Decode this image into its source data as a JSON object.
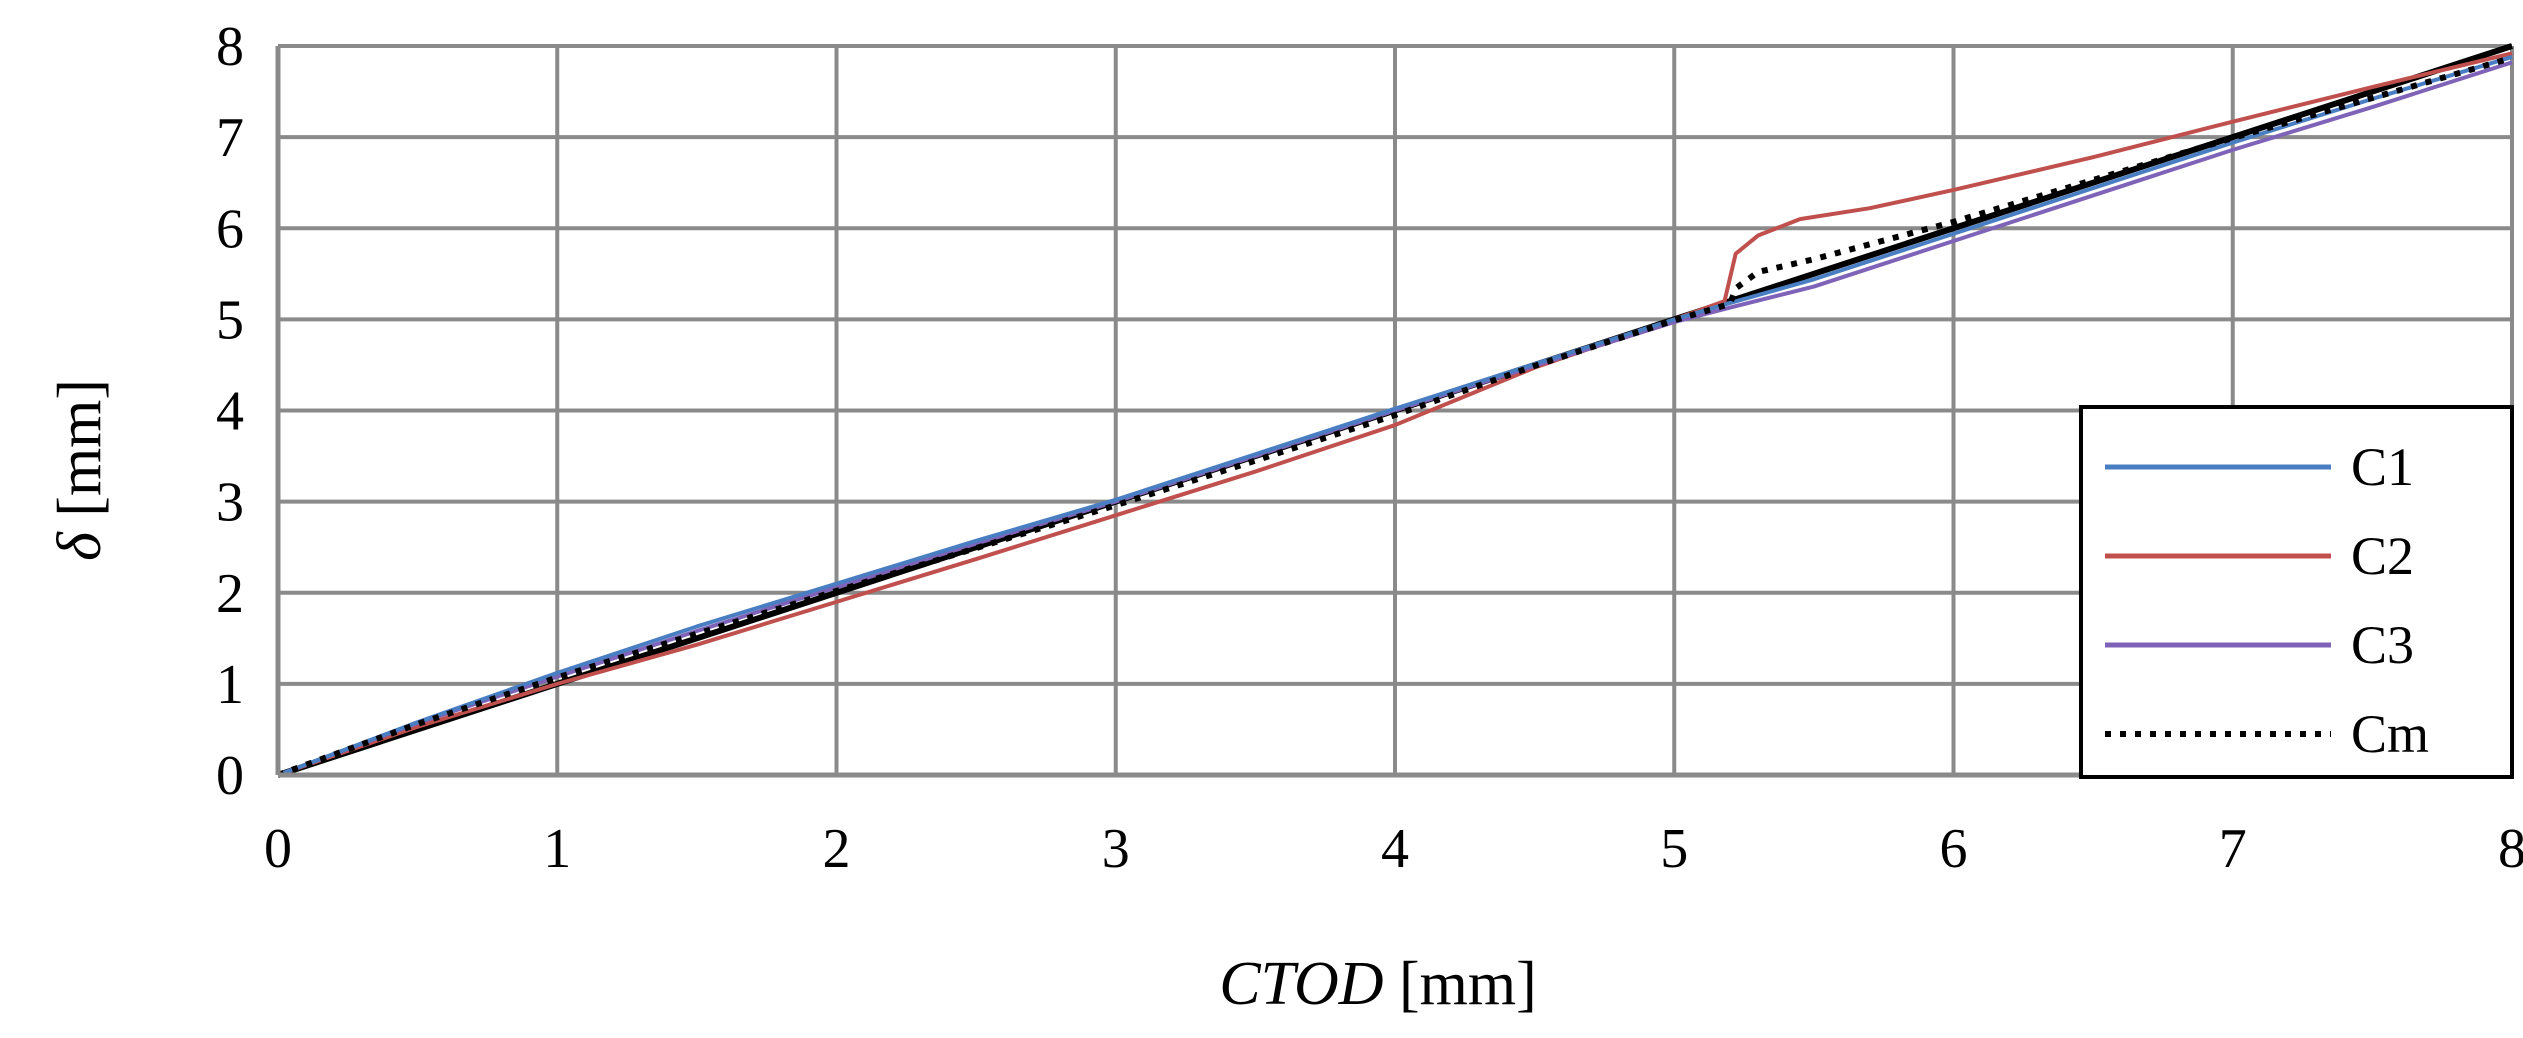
{
  "chart_data": {
    "type": "line",
    "title": "",
    "xlabel_italic": "CTOD",
    "xlabel_unit": " [mm]",
    "ylabel_symbol": "δ",
    "ylabel_unit": " [mm]",
    "xlim": [
      0,
      8
    ],
    "ylim": [
      0,
      8
    ],
    "xticks": [
      0,
      1,
      2,
      3,
      4,
      5,
      6,
      7,
      8
    ],
    "yticks": [
      0,
      1,
      2,
      3,
      4,
      5,
      6,
      7,
      8
    ],
    "grid": true,
    "legend_position": "bottom-right",
    "reference_line": {
      "name": "y = x",
      "color": "#000000",
      "x": [
        0,
        8
      ],
      "y": [
        0,
        8
      ]
    },
    "series": [
      {
        "name": "C1",
        "color": "#4A7EC2",
        "style": "solid",
        "x": [
          0,
          0.5,
          1,
          1.5,
          2,
          2.5,
          3,
          3.5,
          4,
          4.5,
          5,
          5.2,
          5.5,
          6,
          6.5,
          7,
          7.5,
          8
        ],
        "y": [
          0,
          0.58,
          1.12,
          1.63,
          2.1,
          2.57,
          3.02,
          3.52,
          4.02,
          4.51,
          5.0,
          5.18,
          5.44,
          5.94,
          6.44,
          6.94,
          7.42,
          7.88
        ]
      },
      {
        "name": "C2",
        "color": "#C0504D",
        "style": "solid",
        "x": [
          0,
          0.5,
          1,
          1.5,
          2,
          2.5,
          3,
          3.5,
          4,
          4.5,
          5,
          5.18,
          5.22,
          5.3,
          5.45,
          5.7,
          6,
          6.5,
          7,
          7.5,
          8
        ],
        "y": [
          0,
          0.53,
          1.0,
          1.43,
          1.9,
          2.37,
          2.85,
          3.33,
          3.84,
          4.47,
          5.0,
          5.2,
          5.72,
          5.92,
          6.1,
          6.22,
          6.42,
          6.78,
          7.17,
          7.55,
          7.92
        ]
      },
      {
        "name": "C3",
        "color": "#7E63B8",
        "style": "solid",
        "x": [
          0,
          0.5,
          1,
          1.5,
          2,
          2.5,
          3,
          3.5,
          4,
          4.5,
          5,
          5.2,
          5.5,
          6,
          6.5,
          7,
          7.5,
          8
        ],
        "y": [
          0,
          0.57,
          1.08,
          1.58,
          2.06,
          2.54,
          3.0,
          3.5,
          4.0,
          4.49,
          4.97,
          5.13,
          5.36,
          5.86,
          6.36,
          6.86,
          7.33,
          7.82
        ]
      },
      {
        "name": "Cm",
        "color": "#000000",
        "style": "dotted",
        "x": [
          0,
          0.5,
          1,
          1.5,
          2,
          2.5,
          3,
          3.5,
          4,
          4.5,
          5,
          5.2,
          5.22,
          5.3,
          5.5,
          6,
          6.5,
          7,
          7.5,
          8
        ],
        "y": [
          0,
          0.56,
          1.07,
          1.55,
          2.02,
          2.49,
          2.96,
          3.45,
          3.95,
          4.49,
          4.99,
          5.17,
          5.34,
          5.52,
          5.66,
          6.07,
          6.53,
          6.99,
          7.43,
          7.87
        ]
      }
    ]
  }
}
